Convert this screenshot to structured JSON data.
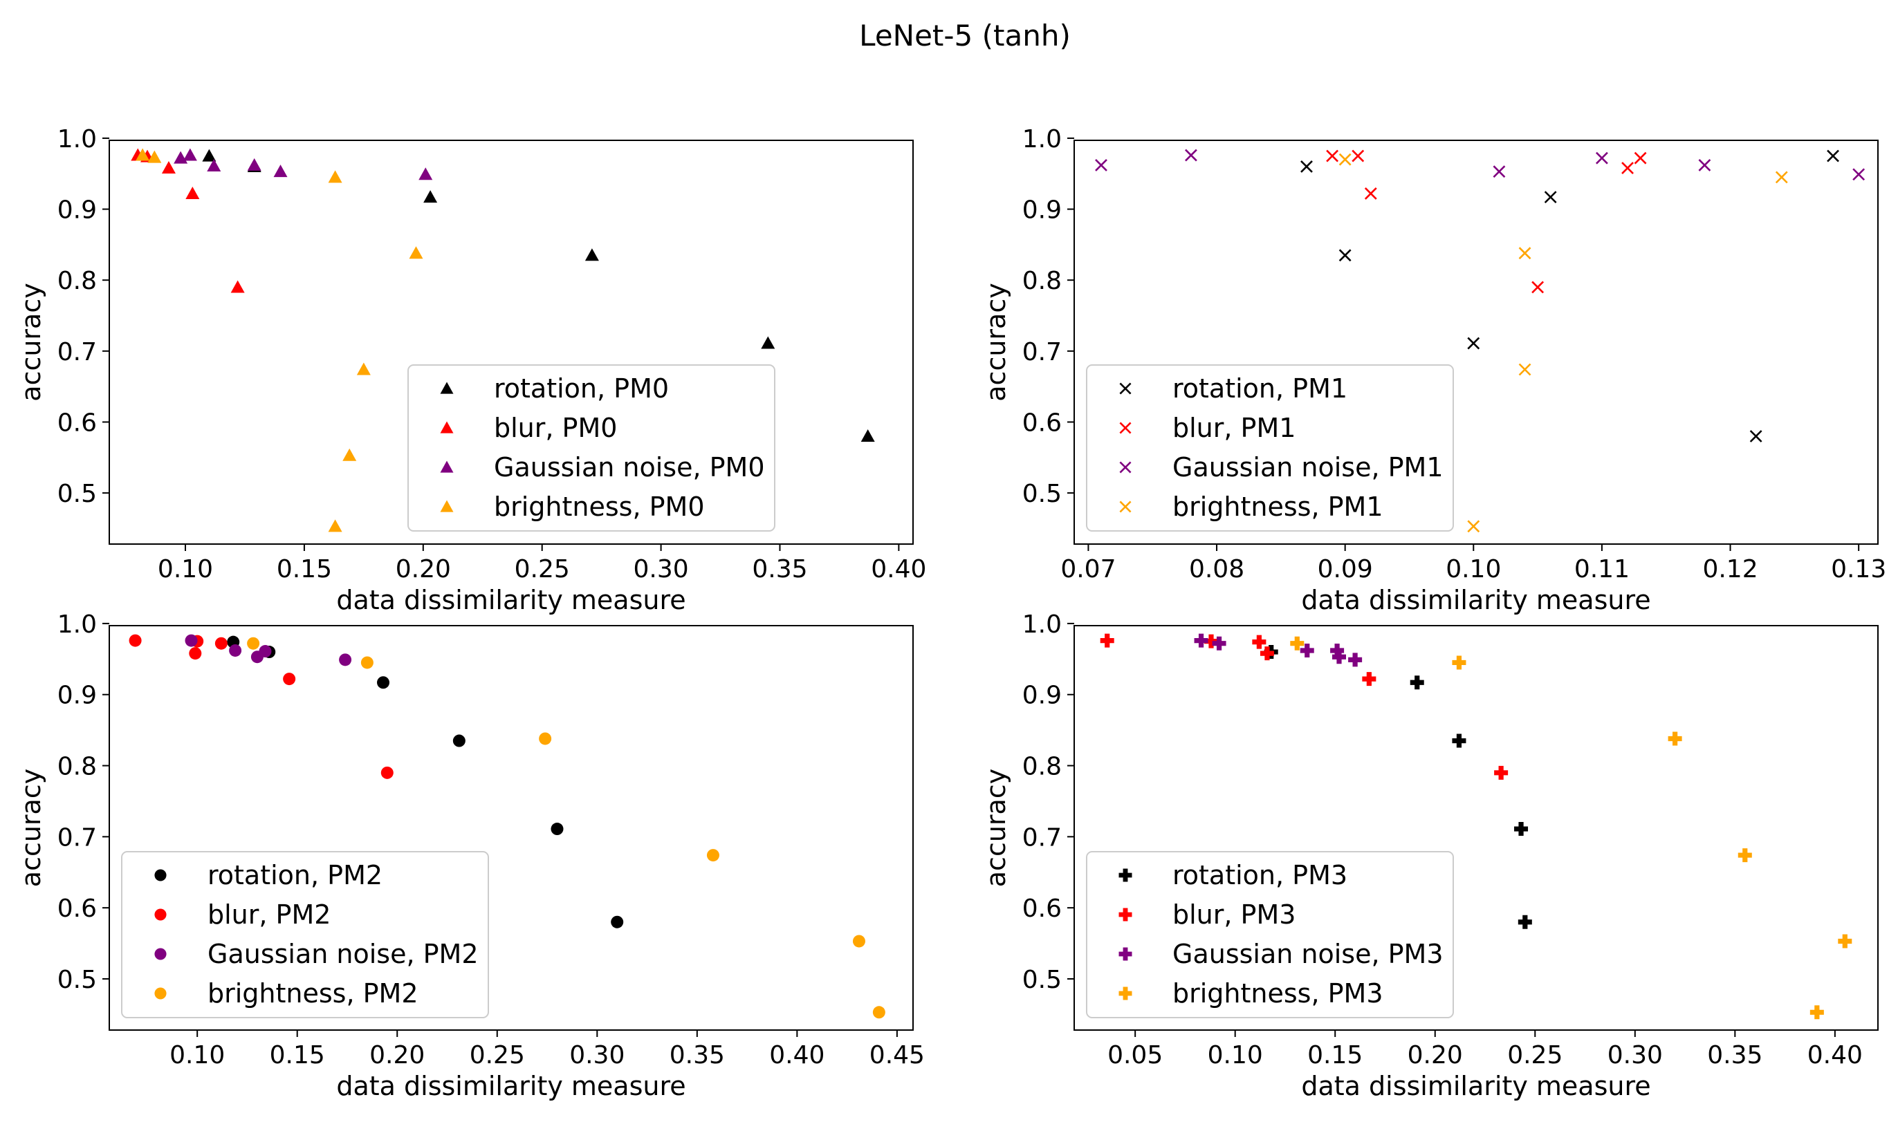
{
  "title": "LeNet-5 (tanh)",
  "colors": {
    "rotation": "#000000",
    "blur": "#ff0000",
    "gaussian_noise": "#800080",
    "brightness": "#ffa500"
  },
  "chart_data": [
    {
      "type": "scatter",
      "marker": "triangle",
      "xlabel": "data dissimilarity measure",
      "ylabel": "accuracy",
      "xlim": [
        0.068,
        0.406
      ],
      "ylim": [
        0.428,
        0.997
      ],
      "xticks": [
        0.1,
        0.15,
        0.2,
        0.25,
        0.3,
        0.35,
        0.4
      ],
      "xtick_labels": [
        "0.10",
        "0.15",
        "0.20",
        "0.25",
        "0.30",
        "0.35",
        "0.40"
      ],
      "yticks": [
        0.5,
        0.6,
        0.7,
        0.8,
        0.9,
        1.0
      ],
      "ytick_labels": [
        "0.5",
        "0.6",
        "0.7",
        "0.8",
        "0.9",
        "1.0"
      ],
      "legend_position": "center-right",
      "series": [
        {
          "name": "rotation, PM0",
          "color": "#000000",
          "x": [
            0.11,
            0.129,
            0.203,
            0.271,
            0.345,
            0.387
          ],
          "y": [
            0.975,
            0.96,
            0.917,
            0.835,
            0.711,
            0.58
          ]
        },
        {
          "name": "blur, PM0",
          "color": "#ff0000",
          "x": [
            0.08,
            0.084,
            0.093,
            0.103,
            0.122
          ],
          "y": [
            0.976,
            0.974,
            0.958,
            0.922,
            0.79
          ]
        },
        {
          "name": "Gaussian noise, PM0",
          "color": "#800080",
          "x": [
            0.098,
            0.102,
            0.112,
            0.129,
            0.14,
            0.201
          ],
          "y": [
            0.972,
            0.976,
            0.961,
            0.962,
            0.953,
            0.949
          ]
        },
        {
          "name": "brightness, PM0",
          "color": "#ffa500",
          "x": [
            0.082,
            0.087,
            0.163,
            0.197,
            0.175,
            0.169,
            0.163
          ],
          "y": [
            0.976,
            0.973,
            0.945,
            0.838,
            0.674,
            0.553,
            0.453
          ]
        }
      ]
    },
    {
      "type": "scatter",
      "marker": "x",
      "xlabel": "data dissimilarity measure",
      "ylabel": "accuracy",
      "xlim": [
        0.0689,
        0.1315
      ],
      "ylim": [
        0.428,
        0.997
      ],
      "xticks": [
        0.07,
        0.08,
        0.09,
        0.1,
        0.11,
        0.12,
        0.13
      ],
      "xtick_labels": [
        "0.07",
        "0.08",
        "0.09",
        "0.10",
        "0.11",
        "0.12",
        "0.13"
      ],
      "yticks": [
        0.5,
        0.6,
        0.7,
        0.8,
        0.9,
        1.0
      ],
      "ytick_labels": [
        "0.5",
        "0.6",
        "0.7",
        "0.8",
        "0.9",
        "1.0"
      ],
      "legend_position": "lower-left",
      "series": [
        {
          "name": "rotation, PM1",
          "color": "#000000",
          "x": [
            0.087,
            0.09,
            0.106,
            0.1,
            0.122,
            0.128
          ],
          "y": [
            0.96,
            0.835,
            0.917,
            0.711,
            0.58,
            0.975
          ]
        },
        {
          "name": "blur, PM1",
          "color": "#ff0000",
          "x": [
            0.089,
            0.091,
            0.092,
            0.105,
            0.112,
            0.113
          ],
          "y": [
            0.975,
            0.975,
            0.922,
            0.79,
            0.958,
            0.972
          ]
        },
        {
          "name": "Gaussian noise, PM1",
          "color": "#800080",
          "x": [
            0.071,
            0.078,
            0.102,
            0.11,
            0.118,
            0.13
          ],
          "y": [
            0.962,
            0.976,
            0.953,
            0.972,
            0.962,
            0.949
          ]
        },
        {
          "name": "brightness, PM1",
          "color": "#ffa500",
          "x": [
            0.09,
            0.104,
            0.104,
            0.1,
            0.124
          ],
          "y": [
            0.97,
            0.838,
            0.674,
            0.453,
            0.945
          ]
        }
      ]
    },
    {
      "type": "scatter",
      "marker": "circle",
      "xlabel": "data dissimilarity measure",
      "ylabel": "accuracy",
      "xlim": [
        0.056,
        0.458
      ],
      "ylim": [
        0.428,
        0.997
      ],
      "xticks": [
        0.1,
        0.15,
        0.2,
        0.25,
        0.3,
        0.35,
        0.4,
        0.45
      ],
      "xtick_labels": [
        "0.10",
        "0.15",
        "0.20",
        "0.25",
        "0.30",
        "0.35",
        "0.40",
        "0.45"
      ],
      "yticks": [
        0.5,
        0.6,
        0.7,
        0.8,
        0.9,
        1.0
      ],
      "ytick_labels": [
        "0.5",
        "0.6",
        "0.7",
        "0.8",
        "0.9",
        "1.0"
      ],
      "legend_position": "lower-left",
      "series": [
        {
          "name": "rotation, PM2",
          "color": "#000000",
          "x": [
            0.118,
            0.136,
            0.193,
            0.231,
            0.28,
            0.31
          ],
          "y": [
            0.974,
            0.96,
            0.917,
            0.835,
            0.711,
            0.58
          ]
        },
        {
          "name": "blur, PM2",
          "color": "#ff0000",
          "x": [
            0.069,
            0.1,
            0.099,
            0.112,
            0.146,
            0.195
          ],
          "y": [
            0.976,
            0.975,
            0.958,
            0.972,
            0.922,
            0.79
          ]
        },
        {
          "name": "Gaussian noise, PM2",
          "color": "#800080",
          "x": [
            0.097,
            0.119,
            0.13,
            0.134,
            0.174
          ],
          "y": [
            0.976,
            0.962,
            0.953,
            0.961,
            0.949
          ]
        },
        {
          "name": "brightness, PM2",
          "color": "#ffa500",
          "x": [
            0.128,
            0.185,
            0.274,
            0.358,
            0.431,
            0.441
          ],
          "y": [
            0.972,
            0.945,
            0.838,
            0.674,
            0.553,
            0.453
          ]
        }
      ]
    },
    {
      "type": "scatter",
      "marker": "plus",
      "xlabel": "data dissimilarity measure",
      "ylabel": "accuracy",
      "xlim": [
        0.0195,
        0.4215
      ],
      "ylim": [
        0.428,
        0.997
      ],
      "xticks": [
        0.05,
        0.1,
        0.15,
        0.2,
        0.25,
        0.3,
        0.35,
        0.4
      ],
      "xtick_labels": [
        "0.05",
        "0.10",
        "0.15",
        "0.20",
        "0.25",
        "0.30",
        "0.35",
        "0.40"
      ],
      "yticks": [
        0.5,
        0.6,
        0.7,
        0.8,
        0.9,
        1.0
      ],
      "ytick_labels": [
        "0.5",
        "0.6",
        "0.7",
        "0.8",
        "0.9",
        "1.0"
      ],
      "legend_position": "lower-left",
      "series": [
        {
          "name": "rotation, PM3",
          "color": "#000000",
          "x": [
            0.118,
            0.191,
            0.212,
            0.243,
            0.245
          ],
          "y": [
            0.96,
            0.917,
            0.835,
            0.711,
            0.58
          ]
        },
        {
          "name": "blur, PM3",
          "color": "#ff0000",
          "x": [
            0.036,
            0.088,
            0.112,
            0.116,
            0.167,
            0.233
          ],
          "y": [
            0.976,
            0.975,
            0.974,
            0.958,
            0.922,
            0.79
          ]
        },
        {
          "name": "Gaussian noise, PM3",
          "color": "#800080",
          "x": [
            0.083,
            0.092,
            0.136,
            0.151,
            0.152,
            0.16
          ],
          "y": [
            0.976,
            0.972,
            0.962,
            0.962,
            0.953,
            0.949
          ]
        },
        {
          "name": "brightness, PM3",
          "color": "#ffa500",
          "x": [
            0.131,
            0.212,
            0.32,
            0.355,
            0.405,
            0.391
          ],
          "y": [
            0.972,
            0.945,
            0.838,
            0.674,
            0.553,
            0.453
          ]
        }
      ]
    }
  ]
}
